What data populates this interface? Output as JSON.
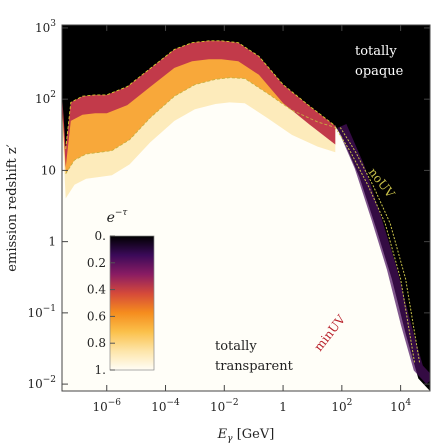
{
  "chart_data": {
    "type": "heatmap",
    "xlabel": "E_γ [GeV]",
    "xlabel_main": "E",
    "xlabel_sub": "γ",
    "xlabel_unit": " [GeV]",
    "ylabel": "emission redshift z′",
    "x_scale": "log",
    "y_scale": "log",
    "xlim": [
      3e-08,
      100000.0
    ],
    "ylim": [
      0.008,
      1100
    ],
    "x_ticks": [
      {
        "value": 1e-06,
        "label_base": "10",
        "label_exp": "−6"
      },
      {
        "value": 0.0001,
        "label_base": "10",
        "label_exp": "−4"
      },
      {
        "value": 0.01,
        "label_base": "10",
        "label_exp": "−2"
      },
      {
        "value": 1,
        "label_base": "1",
        "label_exp": ""
      },
      {
        "value": 100,
        "label_base": "10",
        "label_exp": "2"
      },
      {
        "value": 10000,
        "label_base": "10",
        "label_exp": "4"
      }
    ],
    "y_ticks": [
      {
        "value": 0.01,
        "label_base": "10",
        "label_exp": "−2"
      },
      {
        "value": 0.1,
        "label_base": "10",
        "label_exp": "−1"
      },
      {
        "value": 1,
        "label_base": "1",
        "label_exp": ""
      },
      {
        "value": 10,
        "label_base": "10",
        "label_exp": ""
      },
      {
        "value": 100,
        "label_base": "10",
        "label_exp": "2"
      },
      {
        "value": 1000,
        "label_base": "10",
        "label_exp": "3"
      }
    ],
    "grid": false,
    "colormap": [
      "#000000",
      "#3b0a59",
      "#8a1c63",
      "#d54a3a",
      "#f58c1e",
      "#fbc04a",
      "#fde5a8",
      "#fffdf6"
    ],
    "colorbar": {
      "title": "e",
      "title_exp": "−τ",
      "ticks": [
        "0.",
        "0.2",
        "0.4",
        "0.6",
        "0.8",
        "1."
      ],
      "tick_values": [
        0,
        0.2,
        0.4,
        0.6,
        0.8,
        1
      ],
      "placement": "lower-left"
    },
    "region_labels": [
      {
        "lines": [
          "totally",
          "opaque"
        ],
        "color": "#ffffff"
      },
      {
        "lines": [
          "totally",
          "transparent"
        ],
        "color": "#222222"
      }
    ],
    "series": [
      {
        "name": "noUV",
        "color": "#c9c24a",
        "style": "dashed-double",
        "x": [
          60,
          200,
          800,
          3000,
          10000,
          30000
        ],
        "y": [
          40,
          18,
          6,
          1.8,
          0.3,
          0.02
        ]
      },
      {
        "name": "minUV",
        "color": "#b8202a",
        "style": "label-only",
        "x": [
          500
        ],
        "y": [
          0.06
        ]
      }
    ],
    "contours": [
      {
        "level": 0.1,
        "color": "#d8d030",
        "x": [
          4e-08,
          6e-08,
          1.5e-07,
          4e-07,
          1e-06,
          5e-06,
          3e-05,
          0.0002,
          0.0008,
          0.003,
          0.008,
          0.03,
          0.15,
          1,
          8,
          60
        ],
        "y": [
          20,
          90,
          110,
          115,
          115,
          150,
          270,
          500,
          620,
          660,
          660,
          620,
          400,
          160,
          80,
          42
        ]
      },
      {
        "level": 0.9,
        "color": "#c8b040",
        "x": [
          4e-08,
          8e-08,
          2e-07,
          6e-07,
          1.5e-06,
          6e-06,
          3e-05,
          0.0002,
          0.001,
          0.005,
          0.015,
          0.05,
          0.3,
          2,
          15,
          60
        ],
        "y": [
          9,
          14,
          17,
          18,
          19,
          27,
          55,
          110,
          160,
          190,
          200,
          195,
          120,
          70,
          48,
          40
        ]
      }
    ]
  }
}
